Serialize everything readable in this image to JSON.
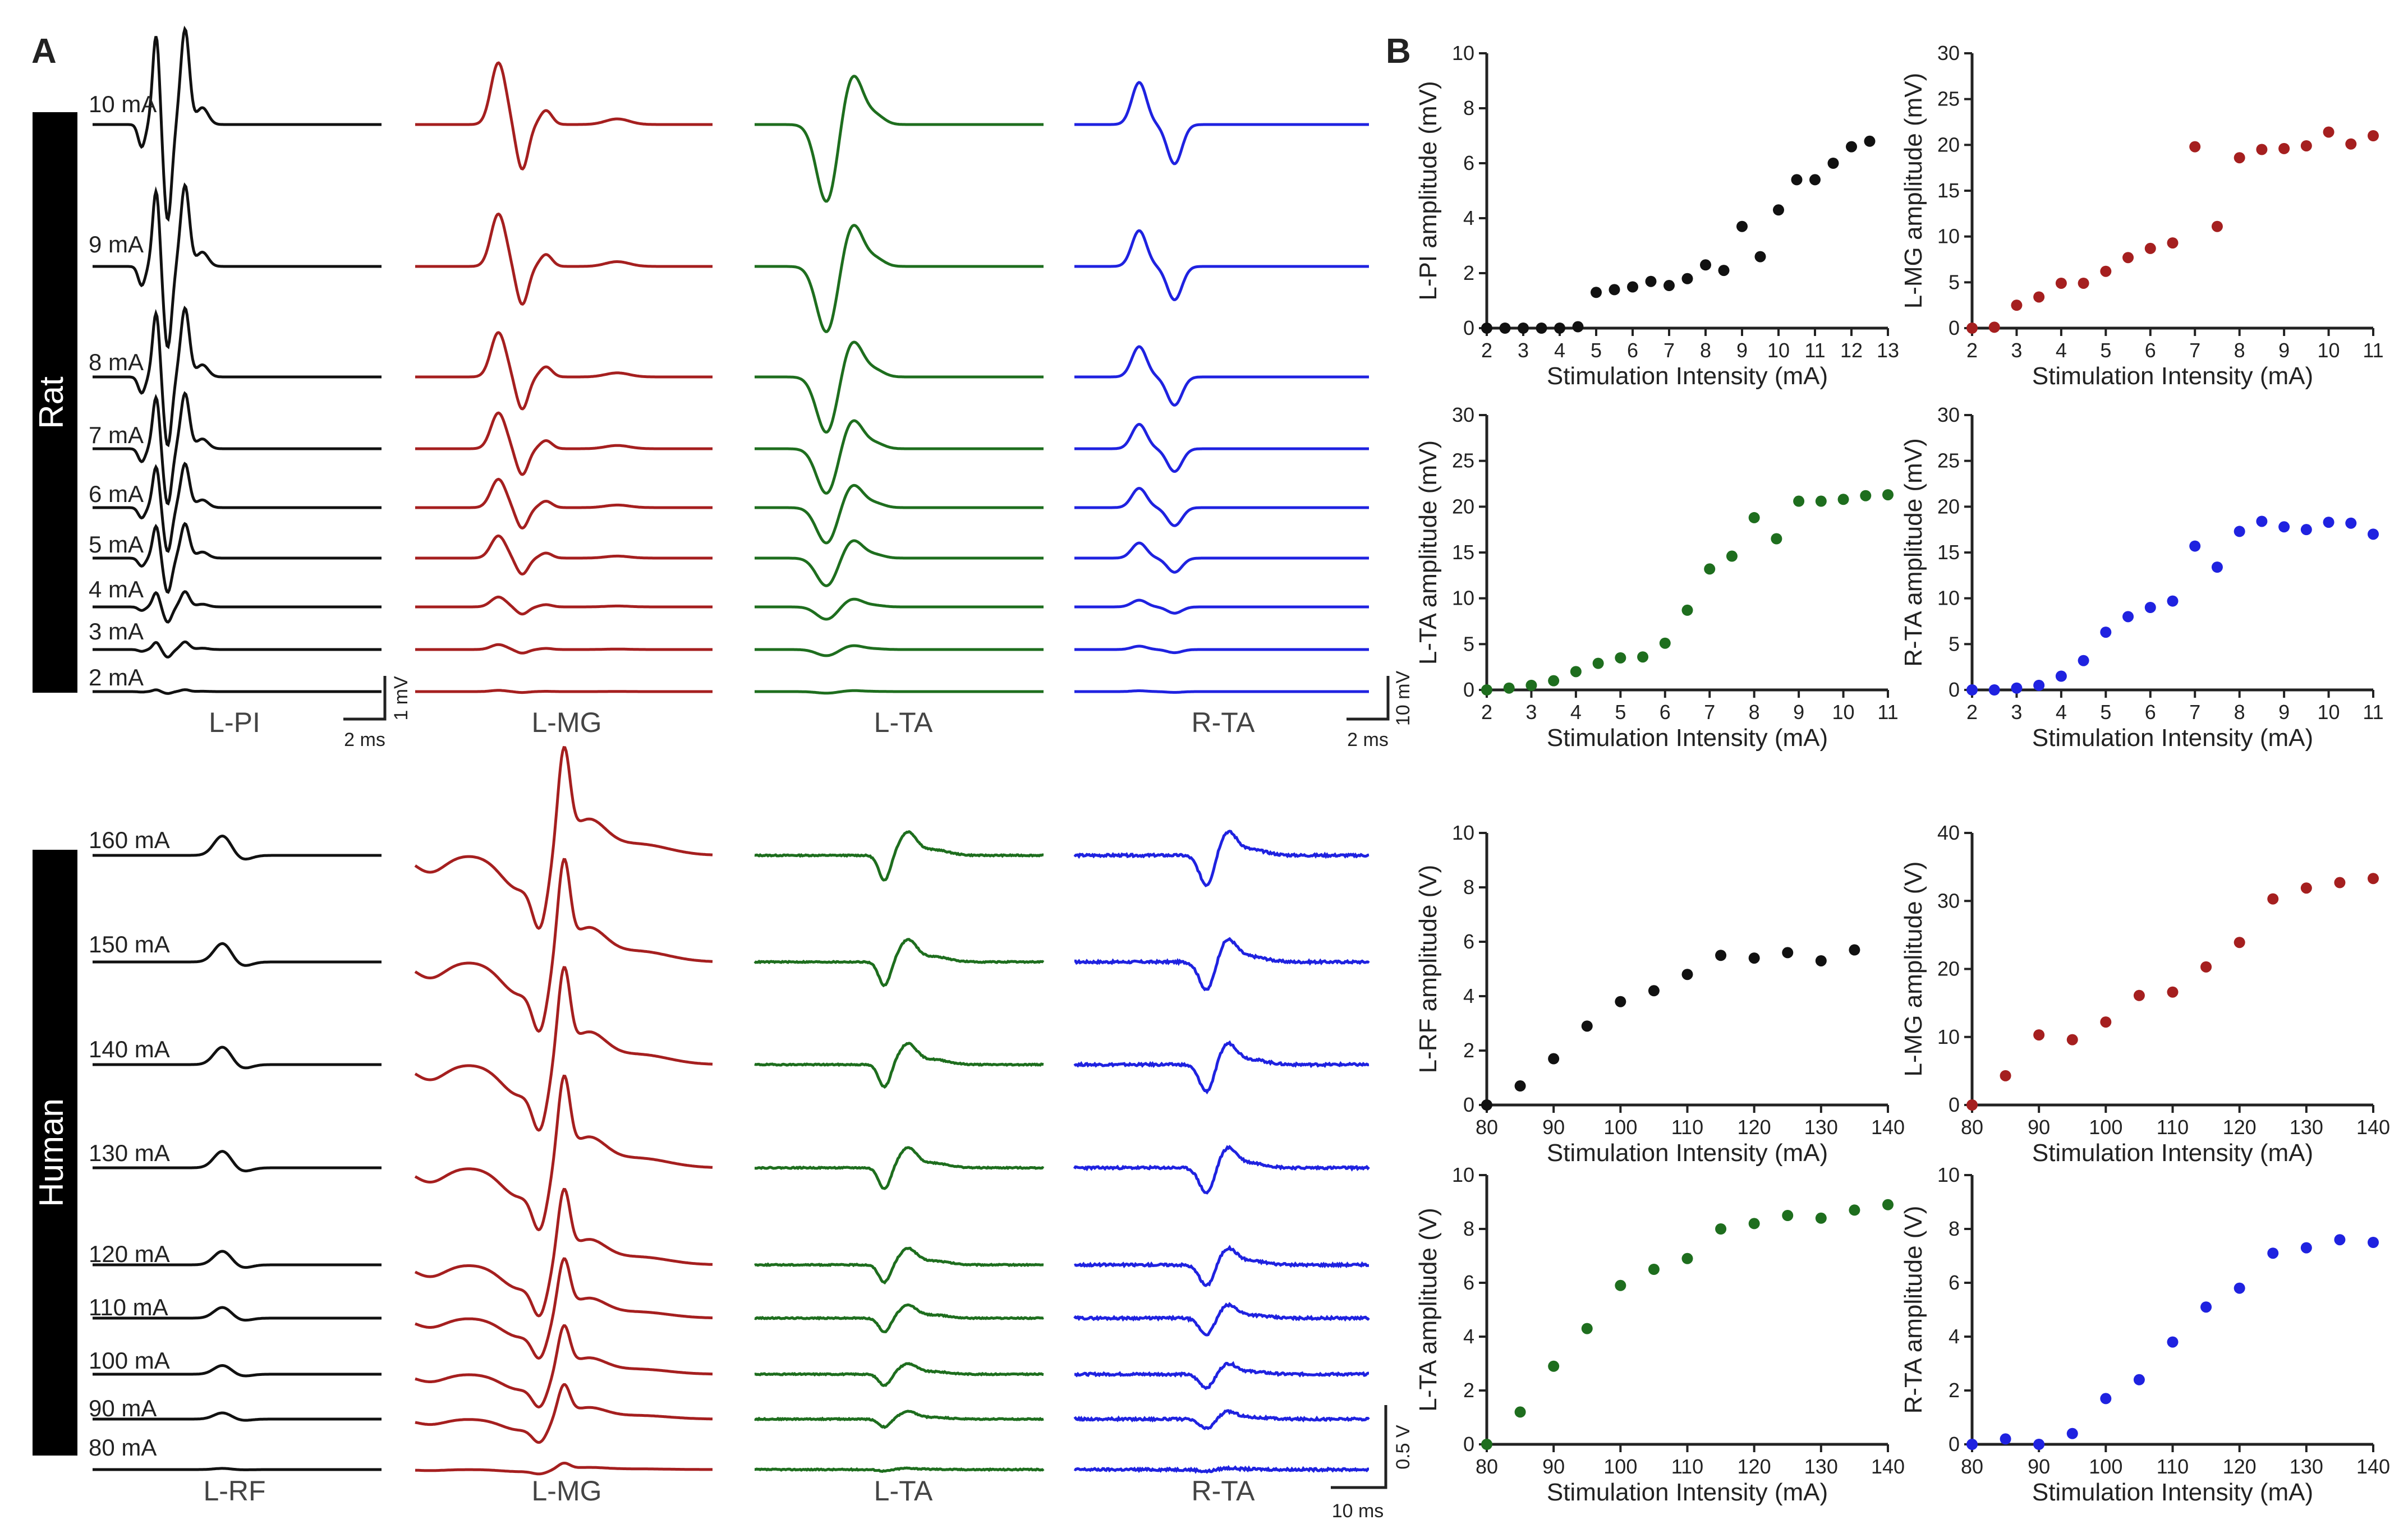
{
  "figure": {
    "panel_a_label": "A",
    "panel_b_label": "B",
    "colors": {
      "black": "#111111",
      "red": "#a51f1f",
      "green": "#1e6e1e",
      "blue": "#1f22e0",
      "axis": "#222222"
    }
  },
  "rat": {
    "species_label": "Rat",
    "muscles": [
      "L-PI",
      "L-MG",
      "L-TA",
      "R-TA"
    ],
    "intensities": [
      "10 mA",
      "9 mA",
      "8 mA",
      "7 mA",
      "6 mA",
      "5 mA",
      "4 mA",
      "3 mA",
      "2 mA"
    ],
    "scale_left": {
      "time": "2 ms",
      "amp": "1 mV"
    },
    "scale_right": {
      "time": "2 ms",
      "amp": "10 mV"
    }
  },
  "human": {
    "species_label": "Human",
    "muscles": [
      "L-RF",
      "L-MG",
      "L-TA",
      "R-TA"
    ],
    "intensities": [
      "160 mA",
      "150 mA",
      "140 mA",
      "130 mA",
      "120 mA",
      "110 mA",
      "100 mA",
      "90 mA",
      "80 mA"
    ],
    "scale": {
      "time": "10 ms",
      "amp": "0.5 V"
    }
  },
  "chart_data": [
    {
      "type": "scatter",
      "id": "rat-lpi",
      "title": "",
      "xlabel": "Stimulation Intensity (mA)",
      "ylabel": "L-PI amplitude (mV)",
      "color": "#111111",
      "xlim": [
        2,
        13
      ],
      "ylim": [
        0,
        10
      ],
      "xticks": [
        2,
        3,
        4,
        5,
        6,
        7,
        8,
        9,
        10,
        11,
        12,
        13
      ],
      "yticks": [
        0,
        2,
        4,
        6,
        8,
        10
      ],
      "x": [
        2,
        2.5,
        3,
        3.5,
        4,
        4.5,
        5,
        5.5,
        6,
        6.5,
        7,
        7.5,
        8,
        8.5,
        9,
        9.5,
        10,
        10.5,
        11,
        11.5,
        12,
        12.5
      ],
      "y": [
        0,
        0,
        0,
        0,
        0,
        0.05,
        1.3,
        1.4,
        1.5,
        1.7,
        1.55,
        1.8,
        2.3,
        2.1,
        3.7,
        2.6,
        4.3,
        5.4,
        5.4,
        6.0,
        6.6,
        6.8
      ]
    },
    {
      "type": "scatter",
      "id": "rat-lmg",
      "title": "",
      "xlabel": "Stimulation Intensity (mA)",
      "ylabel": "L-MG amplitude (mV)",
      "color": "#a51f1f",
      "xlim": [
        2,
        11
      ],
      "ylim": [
        0,
        30
      ],
      "xticks": [
        2,
        3,
        4,
        5,
        6,
        7,
        8,
        9,
        10,
        11
      ],
      "yticks": [
        0,
        5,
        10,
        15,
        20,
        25,
        30
      ],
      "x": [
        2,
        2.5,
        3,
        3.5,
        4,
        4.5,
        5,
        5.5,
        6,
        6.5,
        7,
        7.5,
        8,
        8.5,
        9,
        9.5,
        10,
        10.5,
        11
      ],
      "y": [
        0,
        0.1,
        2.5,
        3.4,
        4.9,
        4.9,
        6.2,
        7.7,
        8.7,
        9.3,
        19.8,
        11.1,
        18.6,
        19.5,
        19.6,
        19.9,
        21.4,
        20.1,
        21.0
      ]
    },
    {
      "type": "scatter",
      "id": "rat-lta",
      "title": "",
      "xlabel": "Stimulation Intensity (mA)",
      "ylabel": "L-TA amplitude (mV)",
      "color": "#1e6e1e",
      "xlim": [
        2,
        11
      ],
      "ylim": [
        0,
        30
      ],
      "xticks": [
        2,
        3,
        4,
        5,
        6,
        7,
        8,
        9,
        10,
        11
      ],
      "yticks": [
        0,
        5,
        10,
        15,
        20,
        25,
        30
      ],
      "x": [
        2,
        2.5,
        3,
        3.5,
        4,
        4.5,
        5,
        5.5,
        6,
        6.5,
        7,
        7.5,
        8,
        8.5,
        9,
        9.5,
        10,
        10.5,
        11
      ],
      "y": [
        0,
        0.2,
        0.5,
        1.0,
        2.0,
        2.9,
        3.5,
        3.6,
        5.1,
        8.7,
        13.2,
        14.6,
        18.8,
        16.5,
        20.6,
        20.6,
        20.8,
        21.2,
        21.3
      ]
    },
    {
      "type": "scatter",
      "id": "rat-rta",
      "title": "",
      "xlabel": "Stimulation Intensity (mA)",
      "ylabel": "R-TA  amplitude (mV)",
      "color": "#1f22e0",
      "xlim": [
        2,
        11
      ],
      "ylim": [
        0,
        30
      ],
      "xticks": [
        2,
        3,
        4,
        5,
        6,
        7,
        8,
        9,
        10,
        11
      ],
      "yticks": [
        0,
        5,
        10,
        15,
        20,
        25,
        30
      ],
      "x": [
        2,
        2.5,
        3,
        3.5,
        4,
        4.5,
        5,
        5.5,
        6,
        6.5,
        7,
        7.5,
        8,
        8.5,
        9,
        9.5,
        10,
        10.5,
        11
      ],
      "y": [
        0,
        0,
        0.2,
        0.5,
        1.5,
        3.2,
        6.3,
        8.0,
        9.0,
        9.7,
        15.7,
        13.4,
        17.3,
        18.4,
        17.8,
        17.5,
        18.3,
        18.2,
        17.0
      ]
    },
    {
      "type": "scatter",
      "id": "human-lrf",
      "title": "",
      "xlabel": "Stimulation Intensity (mA)",
      "ylabel": "L-RF amplitude (V)",
      "color": "#111111",
      "xlim": [
        80,
        140
      ],
      "ylim": [
        0,
        10
      ],
      "xticks": [
        80,
        90,
        100,
        110,
        120,
        130,
        140
      ],
      "yticks": [
        0,
        2,
        4,
        6,
        8,
        10
      ],
      "x": [
        80,
        85,
        90,
        95,
        100,
        105,
        110,
        115,
        120,
        125,
        130,
        135
      ],
      "y": [
        0,
        0.7,
        1.7,
        2.9,
        3.8,
        4.2,
        4.8,
        5.5,
        5.4,
        5.6,
        5.3,
        5.7
      ]
    },
    {
      "type": "scatter",
      "id": "human-lmg",
      "title": "",
      "xlabel": "Stimulation Intensity (mA)",
      "ylabel": "L-MG amplitude (V)",
      "color": "#a51f1f",
      "xlim": [
        80,
        140
      ],
      "ylim": [
        0,
        40
      ],
      "xticks": [
        80,
        90,
        100,
        110,
        120,
        130,
        140
      ],
      "yticks": [
        0,
        10,
        20,
        30,
        40
      ],
      "x": [
        80,
        85,
        90,
        95,
        100,
        105,
        110,
        115,
        120,
        125,
        130,
        135,
        140
      ],
      "y": [
        0,
        4.3,
        10.3,
        9.6,
        12.2,
        16.1,
        16.6,
        20.3,
        23.9,
        30.3,
        31.9,
        32.7,
        33.3
      ]
    },
    {
      "type": "scatter",
      "id": "human-lta",
      "title": "",
      "xlabel": "Stimulation Intensity (mA)",
      "ylabel": "L-TA amplitude (V)",
      "color": "#1e6e1e",
      "xlim": [
        80,
        140
      ],
      "ylim": [
        0,
        10
      ],
      "xticks": [
        80,
        90,
        100,
        110,
        120,
        130,
        140
      ],
      "yticks": [
        0,
        2,
        4,
        6,
        8,
        10
      ],
      "x": [
        80,
        85,
        90,
        95,
        100,
        105,
        110,
        115,
        120,
        125,
        130,
        135,
        140
      ],
      "y": [
        0,
        1.2,
        2.9,
        4.3,
        5.9,
        6.5,
        6.9,
        8.0,
        8.2,
        8.5,
        8.4,
        8.7,
        8.9
      ]
    },
    {
      "type": "scatter",
      "id": "human-rta",
      "title": "",
      "xlabel": "Stimulation Intensity (mA)",
      "ylabel": "R-TA amplitude (V)",
      "color": "#1f22e0",
      "xlim": [
        80,
        140
      ],
      "ylim": [
        0,
        10
      ],
      "xticks": [
        80,
        90,
        100,
        110,
        120,
        130,
        140
      ],
      "yticks": [
        0,
        2,
        4,
        6,
        8,
        10
      ],
      "x": [
        80,
        85,
        90,
        95,
        100,
        105,
        110,
        115,
        120,
        125,
        130,
        135,
        140
      ],
      "y": [
        0,
        0.2,
        0,
        0.4,
        1.7,
        2.4,
        3.8,
        5.1,
        5.8,
        7.1,
        7.3,
        7.6,
        7.5
      ]
    }
  ]
}
